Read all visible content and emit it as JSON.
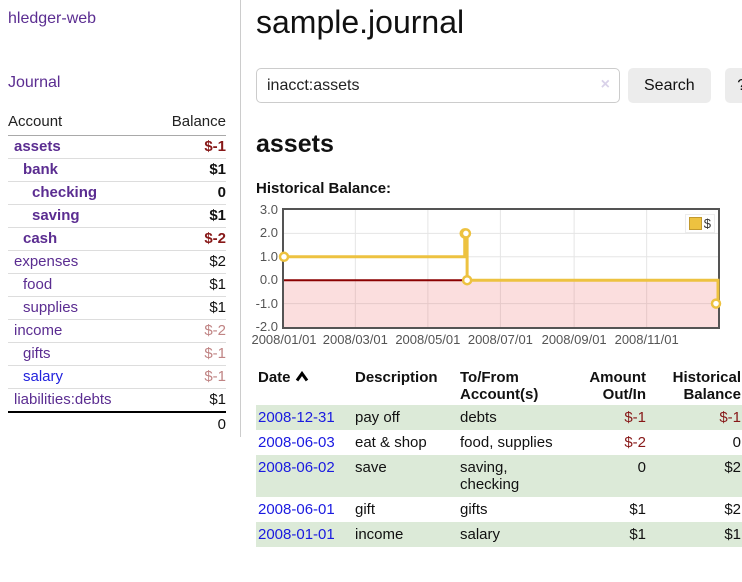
{
  "app_title": "hledger-web",
  "sidebar": {
    "journal_link": "Journal",
    "account_header": "Account",
    "balance_header": "Balance",
    "accounts": [
      {
        "name": "assets",
        "depth": 1,
        "bold": true,
        "balance": "$-1",
        "balance_style": "neg"
      },
      {
        "name": "bank",
        "depth": 2,
        "bold": true,
        "balance": "$1",
        "balance_style": "pos"
      },
      {
        "name": "checking",
        "depth": 3,
        "bold": true,
        "balance": "0",
        "balance_style": "pos"
      },
      {
        "name": "saving",
        "depth": 3,
        "bold": true,
        "balance": "$1",
        "balance_style": "pos"
      },
      {
        "name": "cash",
        "depth": 2,
        "bold": true,
        "balance": "$-2",
        "balance_style": "neg"
      },
      {
        "name": "expenses",
        "depth": 1,
        "bold": false,
        "balance": "$2",
        "balance_style": "pos"
      },
      {
        "name": "food",
        "depth": 2,
        "bold": false,
        "balance": "$1",
        "balance_style": "pos"
      },
      {
        "name": "supplies",
        "depth": 2,
        "bold": false,
        "balance": "$1",
        "balance_style": "pos"
      },
      {
        "name": "income",
        "depth": 1,
        "bold": false,
        "balance": "$-2",
        "balance_style": "neg-muted"
      },
      {
        "name": "gifts",
        "depth": 2,
        "bold": false,
        "balance": "$-1",
        "balance_style": "neg-muted"
      },
      {
        "name": "salary",
        "depth": 2,
        "bold": false,
        "balance": "$-1",
        "balance_style": "neg-muted",
        "link_color": "blue"
      },
      {
        "name": "liabilities:debts",
        "depth": 1,
        "bold": false,
        "balance": "$1",
        "balance_style": "pos"
      }
    ],
    "total_balance": "0"
  },
  "main": {
    "title": "sample.journal",
    "search": {
      "value": "inacct:assets",
      "clear_icon": "×",
      "search_button": "Search",
      "help_button": "?"
    },
    "account_heading": "assets",
    "chart_title": "Historical Balance:"
  },
  "chart_data": {
    "type": "line",
    "step": true,
    "title": "Historical Balance",
    "legend": {
      "label": "$",
      "position": "top-right"
    },
    "x_range": [
      "2008-01-01",
      "2008-12-31"
    ],
    "ylim": [
      -2,
      3
    ],
    "grid": true,
    "y_ticks": [
      "3.0",
      "2.0",
      "1.0",
      "0.0",
      "-1.0",
      "-2.0"
    ],
    "x_ticks": [
      {
        "date": "2008-01-01",
        "label": "2008/01/01"
      },
      {
        "date": "2008-03-01",
        "label": "2008/03/01"
      },
      {
        "date": "2008-05-01",
        "label": "2008/05/01"
      },
      {
        "date": "2008-07-01",
        "label": "2008/07/01"
      },
      {
        "date": "2008-09-01",
        "label": "2008/09/01"
      },
      {
        "date": "2008-11-01",
        "label": "2008/11/01"
      }
    ],
    "series": [
      {
        "name": "$",
        "color": "#edc240",
        "points": [
          {
            "date": "2008-01-01",
            "value": 1
          },
          {
            "date": "2008-06-01",
            "value": 2
          },
          {
            "date": "2008-06-02",
            "value": 2
          },
          {
            "date": "2008-06-03",
            "value": 0
          },
          {
            "date": "2008-12-31",
            "value": -1
          }
        ]
      }
    ],
    "colors": {
      "negative_region": "rgba(235,90,90,0.20)",
      "zero_line": "#8b0000",
      "grid": "#e5e5e5",
      "border": "#545454"
    }
  },
  "register": {
    "headers": {
      "date": "Date",
      "description": "Description",
      "accounts": "To/From Account(s)",
      "amount": "Amount Out/In",
      "balance": "Historical Balance"
    },
    "rows": [
      {
        "date": "2008-12-31",
        "description": "pay off",
        "accounts": "debts",
        "amount": "$-1",
        "amount_style": "neg",
        "balance": "$-1",
        "balance_style": "neg",
        "shaded": true
      },
      {
        "date": "2008-06-03",
        "description": "eat & shop",
        "accounts": "food, supplies",
        "amount": "$-2",
        "amount_style": "neg",
        "balance": "0",
        "balance_style": "pos",
        "shaded": false
      },
      {
        "date": "2008-06-02",
        "description": "save",
        "accounts": "saving, checking",
        "amount": "0",
        "amount_style": "pos",
        "balance": "$2",
        "balance_style": "pos",
        "shaded": true
      },
      {
        "date": "2008-06-01",
        "description": "gift",
        "accounts": "gifts",
        "amount": "$1",
        "amount_style": "pos",
        "balance": "$2",
        "balance_style": "pos",
        "shaded": false
      },
      {
        "date": "2008-01-01",
        "description": "income",
        "accounts": "salary",
        "amount": "$1",
        "amount_style": "pos",
        "balance": "$1",
        "balance_style": "pos",
        "shaded": true
      }
    ]
  },
  "colors": {
    "link_purple": "#5b2d91",
    "link_blue": "#1a1ae0",
    "negative": "#871818",
    "negative_muted": "#c08484",
    "row_green": "#dcead8",
    "series_yellow": "#edc240"
  }
}
